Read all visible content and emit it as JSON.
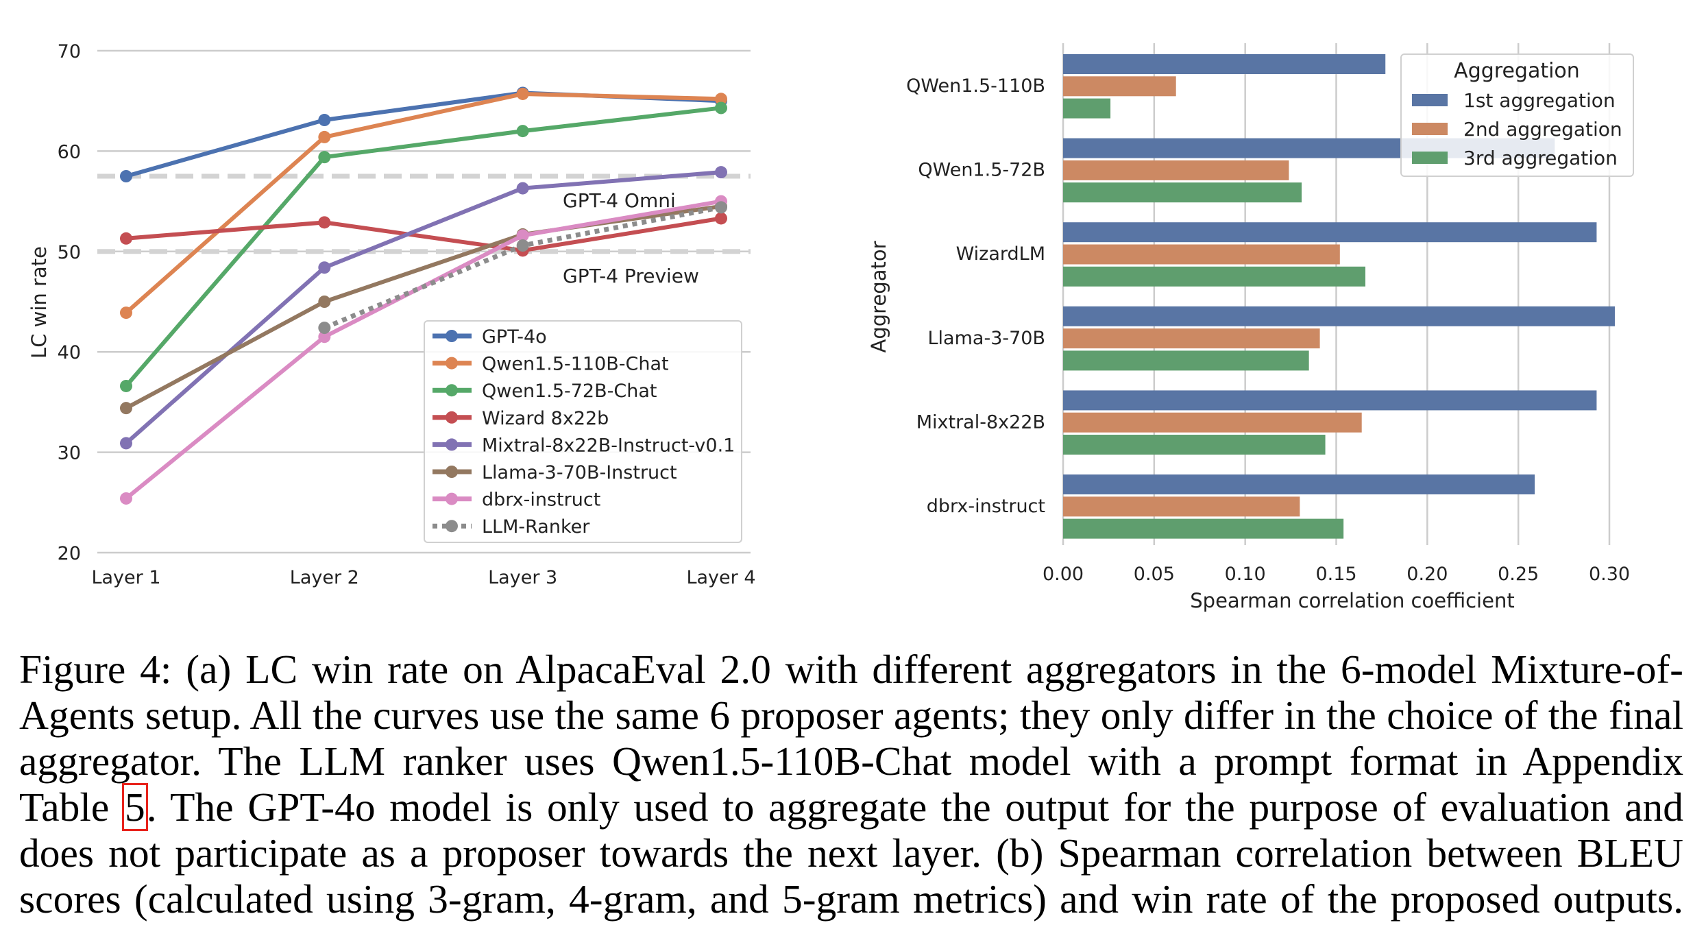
{
  "chart_data": [
    {
      "type": "line",
      "ylabel": "LC win rate",
      "xlabel": "",
      "categories": [
        "Layer 1",
        "Layer 2",
        "Layer 3",
        "Layer 4"
      ],
      "ylim": [
        20,
        70
      ],
      "yticks": [
        "20",
        "30",
        "40",
        "50",
        "60",
        "70"
      ],
      "grid": true,
      "legend_position": "lower-right",
      "series": [
        {
          "name": "GPT-4o",
          "color": "#4c72b0",
          "values": [
            57.5,
            63.1,
            65.8,
            65.0
          ]
        },
        {
          "name": "Qwen1.5-110B-Chat",
          "color": "#dd8452",
          "values": [
            43.9,
            61.4,
            65.7,
            65.2
          ]
        },
        {
          "name": "Qwen1.5-72B-Chat",
          "color": "#55a868",
          "values": [
            36.6,
            59.4,
            62.0,
            64.3
          ]
        },
        {
          "name": "Wizard 8x22b",
          "color": "#c44e52",
          "values": [
            51.3,
            52.9,
            50.1,
            53.3
          ]
        },
        {
          "name": "Mixtral-8x22B-Instruct-v0.1",
          "color": "#8172b3",
          "values": [
            30.9,
            48.4,
            56.3,
            57.9
          ]
        },
        {
          "name": "Llama-3-70B-Instruct",
          "color": "#937860",
          "values": [
            34.4,
            45.0,
            51.7,
            54.5
          ]
        },
        {
          "name": "dbrx-instruct",
          "color": "#da8bc3",
          "values": [
            25.4,
            41.5,
            51.6,
            55.0
          ]
        },
        {
          "name": "LLM-Ranker",
          "color": "#8c8c8c",
          "dotted": true,
          "values": [
            null,
            42.4,
            50.6,
            54.4
          ]
        }
      ],
      "reference_lines": [
        {
          "label": "GPT-4 Omni",
          "value": 57.5
        },
        {
          "label": "GPT-4 Preview",
          "value": 50.0
        }
      ]
    },
    {
      "type": "bar",
      "orientation": "horizontal",
      "xlabel": "Spearman correlation coefficient",
      "ylabel": "Aggregator",
      "categories": [
        "QWen1.5-110B",
        "QWen1.5-72B",
        "WizardLM",
        "Llama-3-70B",
        "Mixtral-8x22B",
        "dbrx-instruct"
      ],
      "xlim": [
        0,
        0.31
      ],
      "xticks": [
        "0.00",
        "0.05",
        "0.10",
        "0.15",
        "0.20",
        "0.25",
        "0.30"
      ],
      "grid": true,
      "legend_title": "Aggregation",
      "legend_position": "top-right",
      "series": [
        {
          "name": "1st aggregation",
          "color": "#5975a4",
          "values": [
            0.177,
            0.27,
            0.293,
            0.303,
            0.293,
            0.259
          ]
        },
        {
          "name": "2nd aggregation",
          "color": "#cc8963",
          "values": [
            0.062,
            0.124,
            0.152,
            0.141,
            0.164,
            0.13
          ]
        },
        {
          "name": "3rd aggregation",
          "color": "#5f9e6e",
          "values": [
            0.026,
            0.131,
            0.166,
            0.135,
            0.144,
            0.154
          ]
        }
      ]
    }
  ],
  "caption": {
    "lines": [
      "Figure 4: (a) LC win rate on AlpacaEval 2.0 with different aggregators in the 6-model Mixture-of-",
      "Agents setup. All the curves use the same 6 proposer agents; they only differ in the choice of the final",
      "aggregator. The LLM ranker uses Qwen1.5-110B-Chat model with a prompt format in Appendix"
    ],
    "line4_before": "Table ",
    "line4_ref": "5",
    "line4_after": ". The GPT-4o model is only used to aggregate the output for the purpose of evaluation and",
    "lines_end": [
      "does not participate as a proposer towards the next layer. (b) Spearman correlation between BLEU",
      "scores (calculated using 3-gram, 4-gram, and 5-gram metrics) and win rate of the proposed outputs."
    ]
  }
}
